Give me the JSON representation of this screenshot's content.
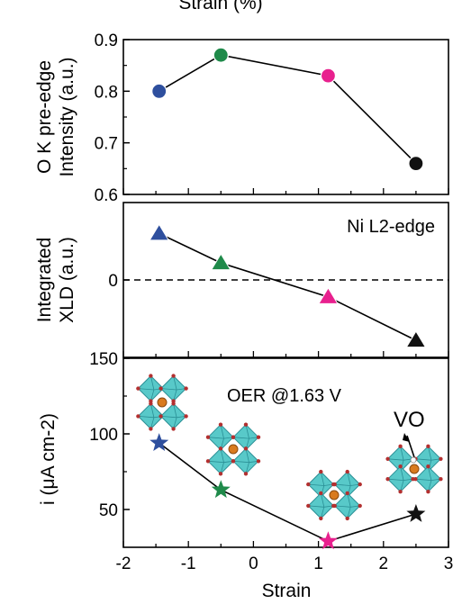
{
  "top_label": "Strain (%)",
  "chart_data": [
    {
      "type": "line",
      "ylabel_line1": "O K pre-edge",
      "ylabel_line2": "Intensity (a.u.)",
      "ylim": [
        0.6,
        0.9
      ],
      "yticks": [
        "0.6",
        "0.7",
        "0.8",
        "0.9"
      ],
      "xlim": [
        -2,
        3
      ],
      "marker": "circle",
      "x": [
        -1.45,
        -0.5,
        1.15,
        2.5
      ],
      "y": [
        0.8,
        0.87,
        0.83,
        0.66
      ],
      "colors": [
        "#2e4f9e",
        "#1f8a4a",
        "#e8208e",
        "#111111"
      ]
    },
    {
      "type": "line",
      "ylabel_line1": "Integrated",
      "ylabel_line2": "XLD (a.u.)",
      "ylim": [
        -1.0,
        1.0
      ],
      "yticks": [
        "0"
      ],
      "xlim": [
        -2,
        3
      ],
      "marker": "triangle",
      "annotation": "Ni L2-edge",
      "x": [
        -1.45,
        -0.5,
        1.15,
        2.5
      ],
      "y": [
        0.6,
        0.22,
        -0.22,
        -0.78
      ],
      "colors": [
        "#2e4f9e",
        "#1f8a4a",
        "#e8208e",
        "#111111"
      ]
    },
    {
      "type": "line",
      "ylabel_line1": "i (μA cm-2)",
      "ylim": [
        25,
        150
      ],
      "yticks": [
        "50",
        "100",
        "150"
      ],
      "xlim": [
        -2,
        3
      ],
      "xticks": [
        "-2",
        "-1",
        "0",
        "1",
        "2",
        "3"
      ],
      "xlabel": "Strain",
      "marker": "star",
      "annotation": "OER @1.63 V",
      "vo_label": "VO",
      "x": [
        -1.45,
        -0.5,
        1.15,
        2.5
      ],
      "y": [
        94,
        63,
        29,
        47
      ],
      "colors": [
        "#2e4f9e",
        "#1f8a4a",
        "#e8208e",
        "#111111"
      ]
    }
  ]
}
